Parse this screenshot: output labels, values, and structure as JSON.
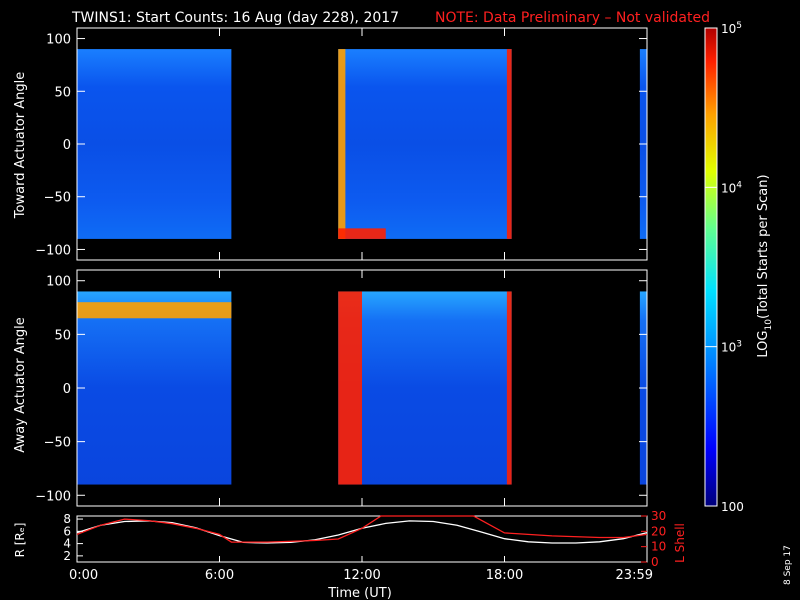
{
  "title": {
    "main": "TWINS1: Start Counts: 16 Aug (day 228), 2017",
    "note": "NOTE: Data Preliminary – Not validated",
    "note_color": "#ff2020"
  },
  "date_stamp": "8 Sep 17",
  "chart_data": [
    {
      "type": "heatmap",
      "panel": "toward",
      "ylabel": "Toward Actuator Angle",
      "ylim": [
        -110,
        110
      ],
      "yticks": [
        "100",
        "50",
        "0",
        "−50",
        "−100"
      ],
      "ytick_values": [
        100,
        50,
        0,
        -50,
        -100
      ],
      "angle_range": [
        -90,
        90
      ],
      "data_intervals_hours": [
        [
          0,
          6.5
        ],
        [
          11,
          18.3
        ],
        [
          23.7,
          24
        ]
      ],
      "highlight_levels": [
        {
          "hours": [
            11,
            11.3
          ],
          "angles": [
            -90,
            90
          ],
          "level": 0.75
        },
        {
          "hours": [
            11,
            13
          ],
          "angles": [
            -90,
            -80
          ],
          "level": 0.85
        },
        {
          "hours": [
            18.1,
            18.3
          ],
          "angles": [
            -90,
            90
          ],
          "level": 0.88
        }
      ]
    },
    {
      "type": "heatmap",
      "panel": "away",
      "ylabel": "Away Actuator Angle",
      "ylim": [
        -110,
        110
      ],
      "yticks": [
        "100",
        "50",
        "0",
        "−50",
        "−100"
      ],
      "ytick_values": [
        100,
        50,
        0,
        -50,
        -100
      ],
      "angle_range": [
        -90,
        90
      ],
      "data_intervals_hours": [
        [
          0,
          6.5
        ],
        [
          11,
          18.3
        ],
        [
          23.7,
          24
        ]
      ],
      "highlight_levels": [
        {
          "hours": [
            0,
            6.5
          ],
          "angles": [
            65,
            80
          ],
          "level": 0.78
        },
        {
          "hours": [
            11,
            12
          ],
          "angles": [
            -90,
            90
          ],
          "level": 0.85
        },
        {
          "hours": [
            18.1,
            18.3
          ],
          "angles": [
            -90,
            90
          ],
          "level": 0.88
        }
      ]
    },
    {
      "type": "line",
      "panel": "orbit",
      "ylabel_left": "R [Rₑ]",
      "ylabel_right": "L Shell",
      "left_yticks": [
        "8",
        "6",
        "4",
        "2"
      ],
      "left_ytick_values": [
        8,
        6,
        4,
        2
      ],
      "left_ylim": [
        1,
        8.5
      ],
      "right_yticks": [
        "30",
        "20",
        "10",
        "0"
      ],
      "right_ytick_values": [
        30,
        20,
        10,
        0
      ],
      "right_ylim": [
        0,
        30
      ],
      "right_color": "#ff2020",
      "xlabel": "Time (UT)",
      "xticks": [
        "0:00",
        "6:00",
        "12:00",
        "18:00",
        "23:59"
      ],
      "xtick_values": [
        0,
        6,
        12,
        18,
        24
      ],
      "series": [
        {
          "axis": "left",
          "color": "#ffffff",
          "x": [
            0,
            1,
            2,
            3,
            4,
            5,
            6,
            7,
            8,
            9,
            10,
            11,
            12,
            13,
            14,
            15,
            16,
            17,
            18,
            19,
            20,
            21,
            22,
            23,
            24
          ],
          "y": [
            5.8,
            7.0,
            7.6,
            7.7,
            7.4,
            6.6,
            5.3,
            4.2,
            4.1,
            4.2,
            4.6,
            5.4,
            6.5,
            7.3,
            7.7,
            7.6,
            7.0,
            5.9,
            4.8,
            4.3,
            4.1,
            4.1,
            4.3,
            4.8,
            5.8
          ]
        },
        {
          "axis": "right",
          "color": "#ff2020",
          "x": [
            0,
            1,
            2,
            3,
            4,
            5,
            6,
            6.5,
            8,
            10,
            11,
            12,
            12.8,
            16.7,
            18,
            20,
            22,
            23,
            24
          ],
          "y": [
            18,
            24,
            28,
            27,
            25,
            22,
            18,
            13,
            13,
            14,
            15,
            22,
            31,
            31,
            19,
            17,
            16,
            16,
            18
          ]
        }
      ]
    }
  ],
  "colorbar": {
    "label": "LOG10(Total Starts per Scan)",
    "label_base": "LOG",
    "label_sub": "10",
    "label_rest": "(Total Starts per Scan)",
    "ticks": [
      {
        "base": "10",
        "exp": "5",
        "value": 100000
      },
      {
        "base": "10",
        "exp": "4",
        "value": 10000
      },
      {
        "base": "10",
        "exp": "3",
        "value": 1000
      },
      {
        "plain": "100",
        "value": 100
      }
    ],
    "range": [
      100,
      100000
    ],
    "colors": [
      "#00007a",
      "#0000ff",
      "#0080ff",
      "#00e0ff",
      "#60ff90",
      "#e0ff00",
      "#ffa000",
      "#ff2000",
      "#b00000"
    ]
  }
}
